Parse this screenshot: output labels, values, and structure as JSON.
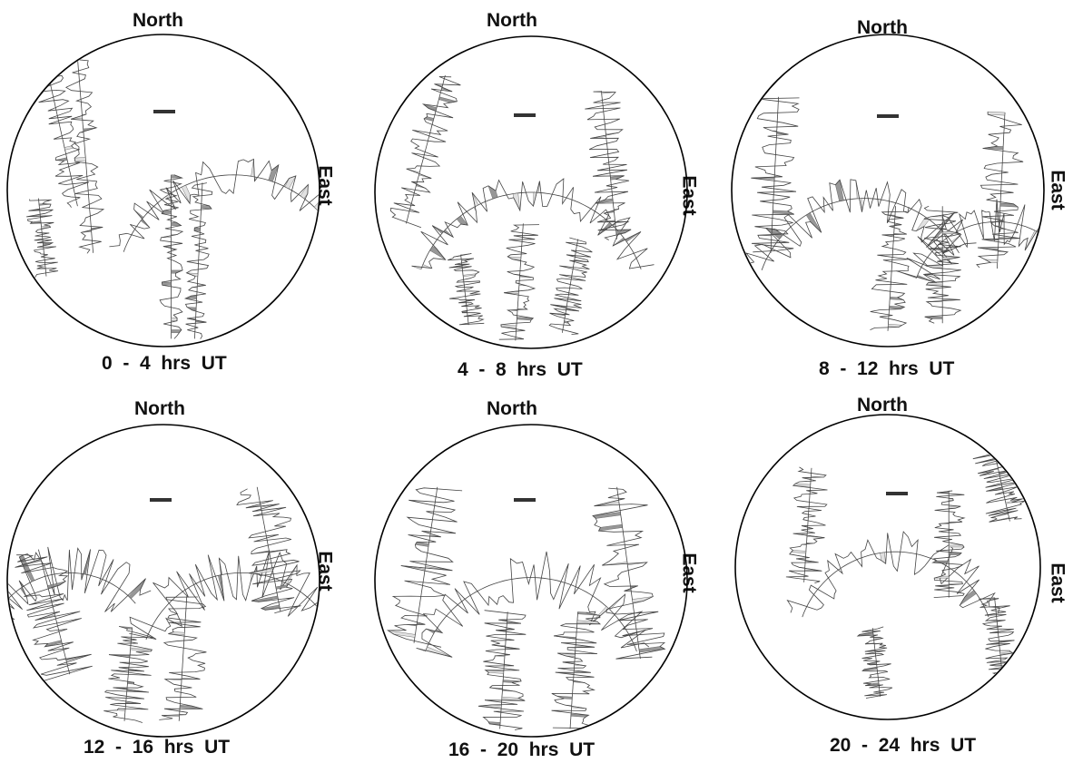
{
  "figure": {
    "panels": [
      {
        "north_label": "North",
        "east_label": "East",
        "time_range_label": "0  -  4  hrs  UT"
      },
      {
        "north_label": "North",
        "east_label": "East",
        "time_range_label": "4  -  8  hrs  UT"
      },
      {
        "north_label": "North",
        "east_label": "East",
        "time_range_label": "8  -  12  hrs  UT"
      },
      {
        "north_label": "North",
        "east_label": "East",
        "time_range_label": "12  -  16  hrs  UT"
      },
      {
        "north_label": "North",
        "east_label": "East",
        "time_range_label": "16  -  20  hrs  UT"
      },
      {
        "north_label": "North",
        "east_label": "East",
        "time_range_label": "20  -  24  hrs  UT"
      }
    ]
  },
  "colors": {
    "circle": "#000000",
    "trace_line": "#444444",
    "fill_dark": "#8c8c8c",
    "fill_light": "#dedede",
    "scale_bar": "#333333"
  }
}
